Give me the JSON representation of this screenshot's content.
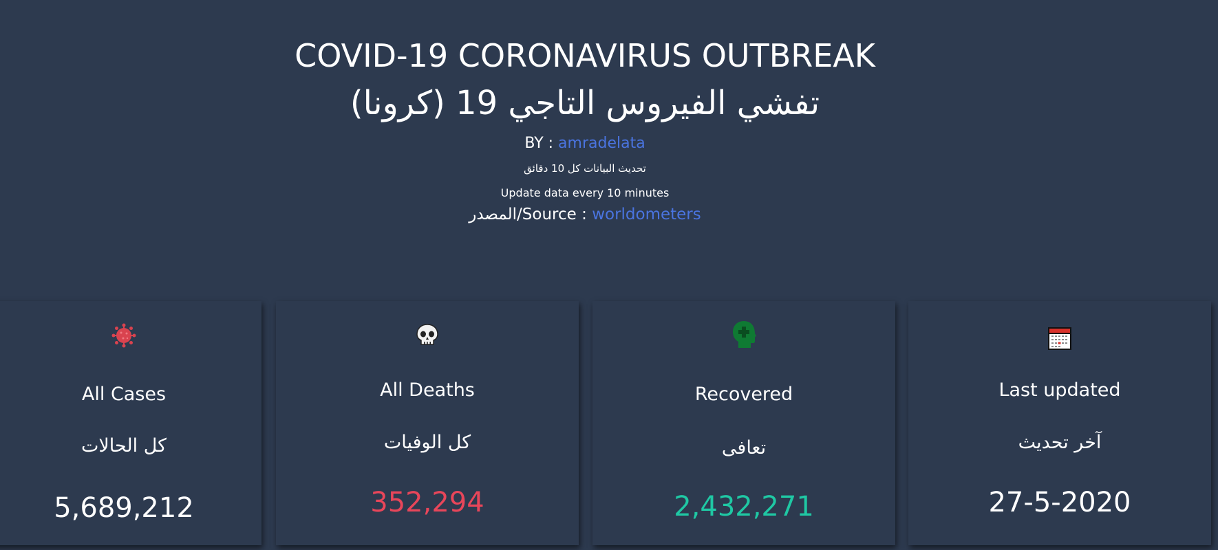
{
  "header": {
    "title_en": "COVID-19 CORONAVIRUS OUTBREAK",
    "title_ar": "تفشي الفيروس التاجي 19 (كرونا)",
    "by_prefix": "BY : ",
    "by_link": "amradelata",
    "update_ar": "تحديث البيانات كل 10 دقائق",
    "update_en": "Update data every 10 minutes",
    "source_prefix": "المصدر/Source : ",
    "source_link": "worldometers"
  },
  "cards": [
    {
      "icon": "virus-icon",
      "label_en": "All Cases",
      "label_ar": "كل الحالات",
      "value": "5,689,212",
      "value_color": "#ffffff"
    },
    {
      "icon": "skull-icon",
      "label_en": "All Deaths",
      "label_ar": "كل الوفيات",
      "value": "352,294",
      "value_color": "#e8465a"
    },
    {
      "icon": "health-head-icon",
      "label_en": "Recovered",
      "label_ar": "تعافى",
      "value": "2,432,271",
      "value_color": "#1fc8a4"
    },
    {
      "icon": "calendar-icon",
      "label_en": "Last updated",
      "label_ar": "آخر تحديث",
      "value": "27-5-2020",
      "value_color": "#ffffff"
    }
  ],
  "colors": {
    "background": "#2d3a4f",
    "link": "#4a74e0",
    "deaths": "#e8465a",
    "recovered": "#1fc8a4"
  }
}
